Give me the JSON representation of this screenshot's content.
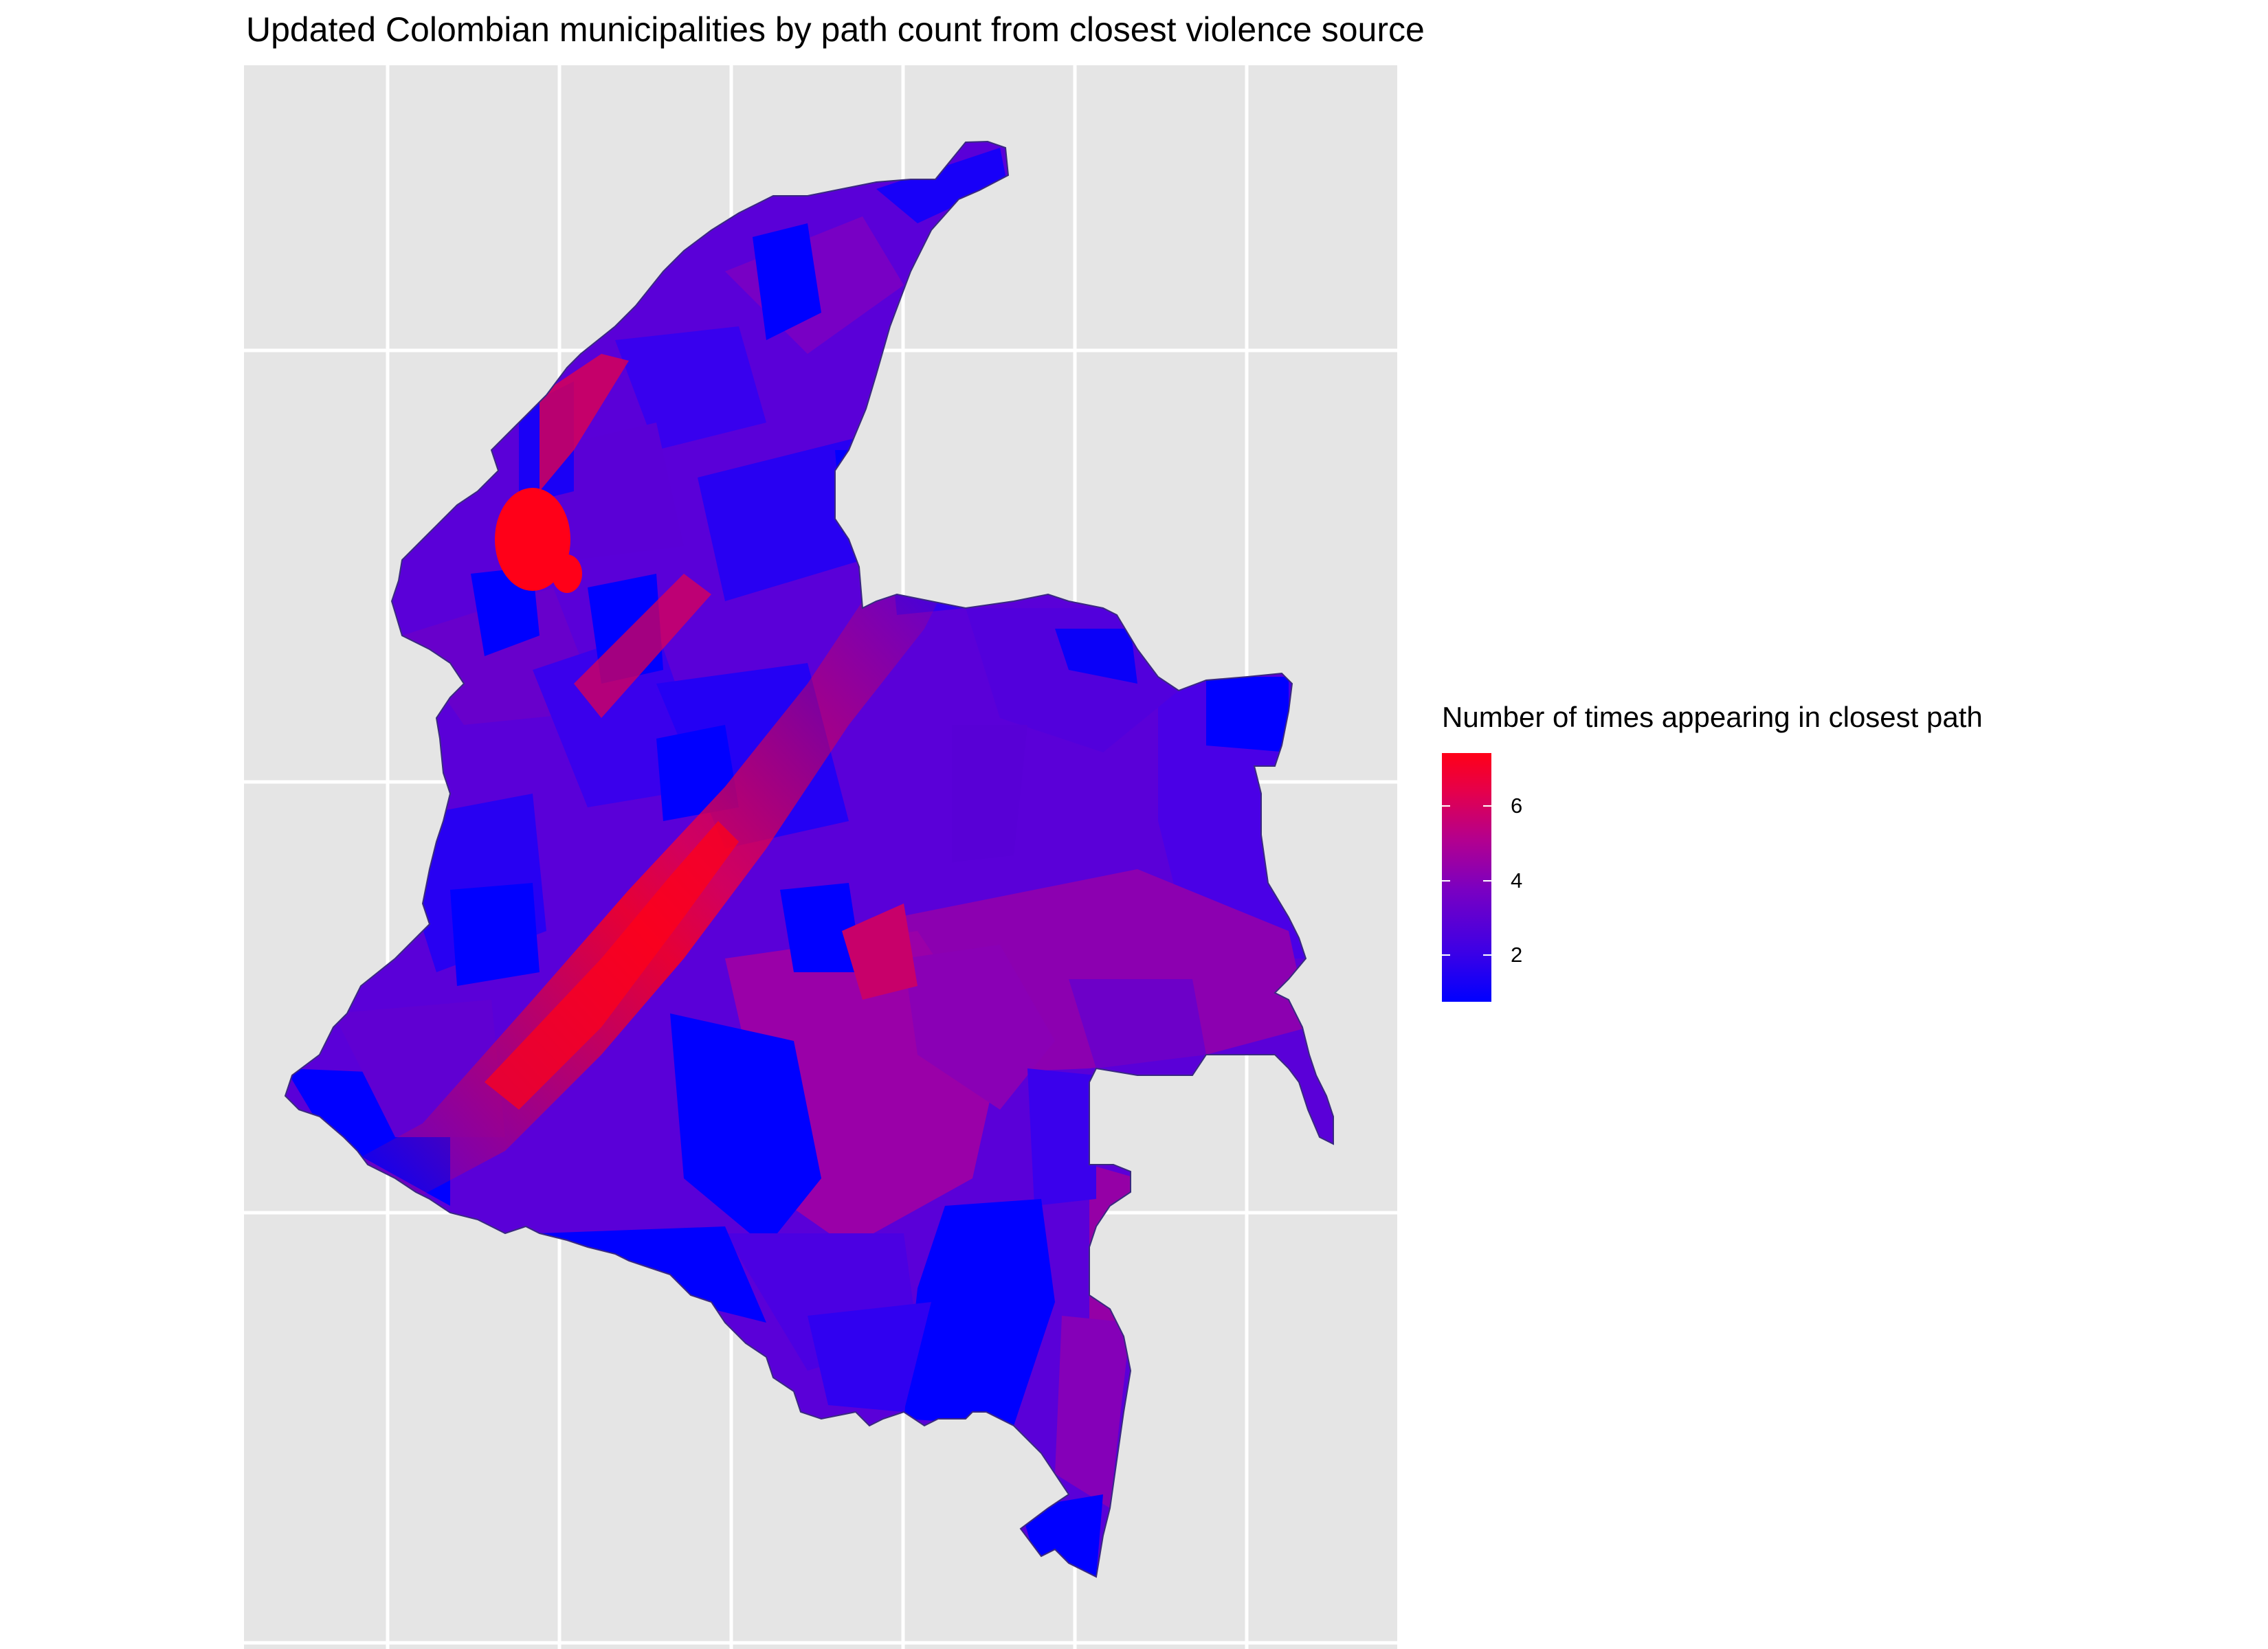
{
  "title": "Updated Colombian municipalities by path count from closest violence source",
  "legend": {
    "title": "Number of times appearing in closest path",
    "ticks": [
      "6",
      "4",
      "2"
    ],
    "color_low": "#0000ff",
    "color_mid": "#8a00b8",
    "color_high": "#ff0018"
  },
  "colors": {
    "panel_background": "#e5e5e5",
    "grid": "#ffffff"
  }
}
